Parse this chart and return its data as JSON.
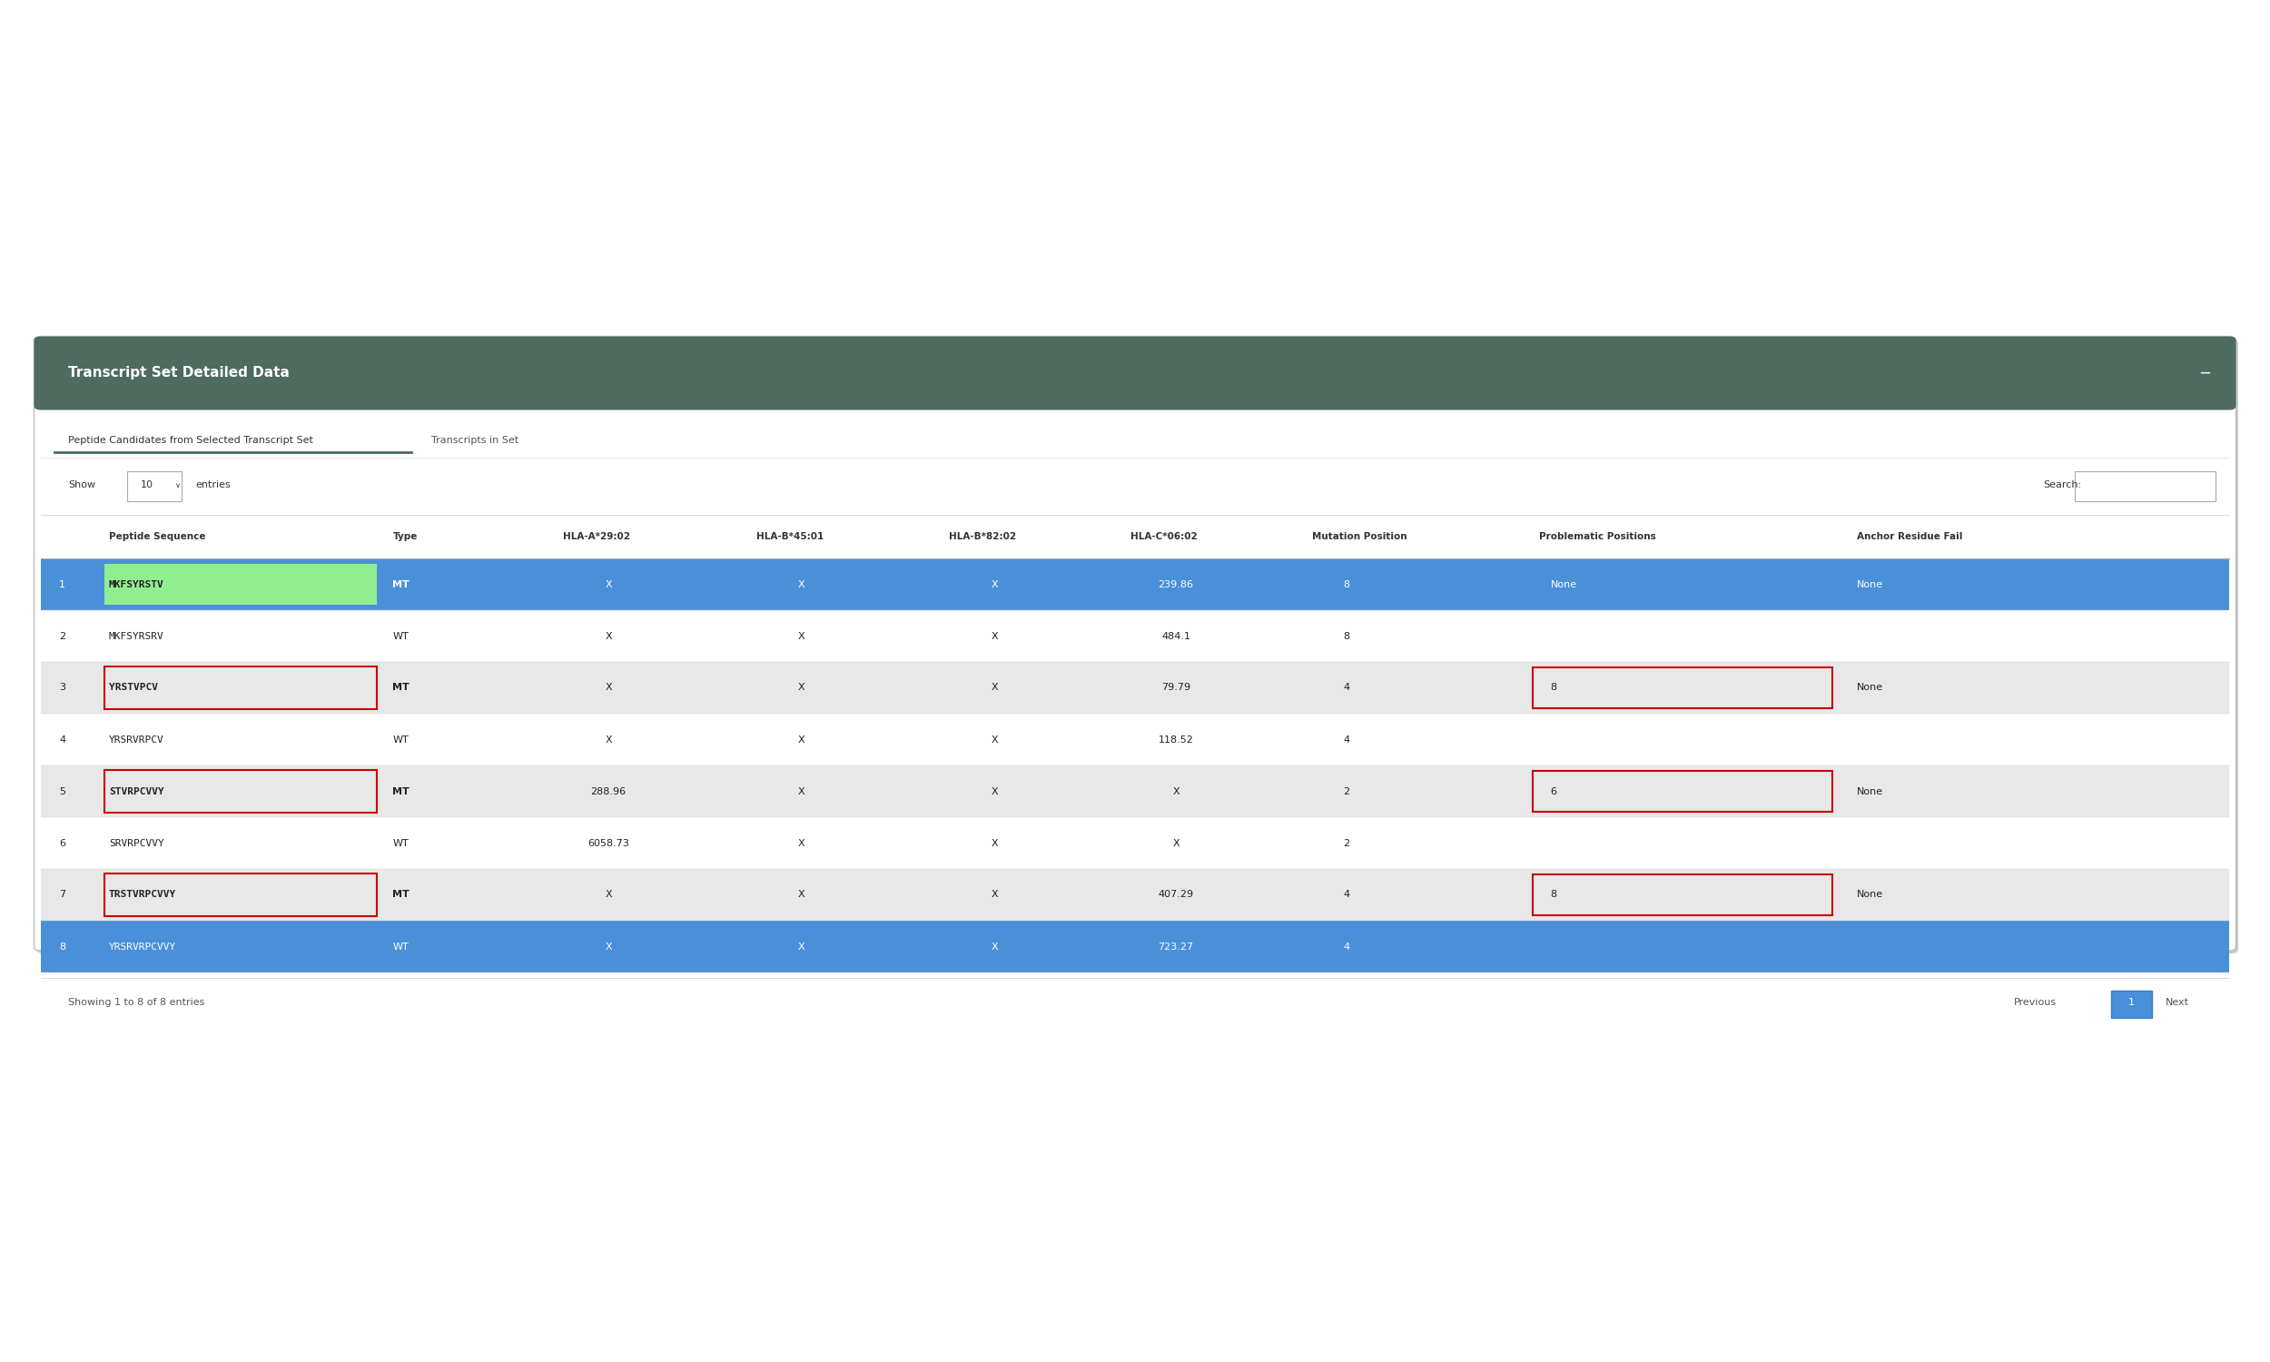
{
  "title": "Transcript Set Detailed Data",
  "tab1": "Peptide Candidates from Selected Transcript Set",
  "tab2": "Transcripts in Set",
  "rows": [
    {
      "num": "1",
      "peptide": "MKFSYRSTV",
      "type": "MT",
      "hla_a": "X",
      "hla_b45": "X",
      "hla_b82": "X",
      "hla_c": "239.86",
      "mutation_pos": "8",
      "prob_pos": "None",
      "anchor": "None",
      "row_bg": "blue",
      "peptide_bg": "green",
      "prob_box": false
    },
    {
      "num": "2",
      "peptide": "MKFSYRSRV",
      "type": "WT",
      "hla_a": "X",
      "hla_b45": "X",
      "hla_b82": "X",
      "hla_c": "484.1",
      "mutation_pos": "8",
      "prob_pos": "",
      "anchor": "",
      "row_bg": "white",
      "peptide_bg": "white",
      "prob_box": false
    },
    {
      "num": "3",
      "peptide": "YRSTVPCV",
      "type": "MT",
      "hla_a": "X",
      "hla_b45": "X",
      "hla_b82": "X",
      "hla_c": "79.79",
      "mutation_pos": "4",
      "prob_pos": "8",
      "anchor": "None",
      "row_bg": "gray",
      "peptide_bg": "gray",
      "prob_box": true
    },
    {
      "num": "4",
      "peptide": "YRSRVRPCV",
      "type": "WT",
      "hla_a": "X",
      "hla_b45": "X",
      "hla_b82": "X",
      "hla_c": "118.52",
      "mutation_pos": "4",
      "prob_pos": "",
      "anchor": "",
      "row_bg": "white",
      "peptide_bg": "white",
      "prob_box": false
    },
    {
      "num": "5",
      "peptide": "STVRPCVVY",
      "type": "MT",
      "hla_a": "288.96",
      "hla_b45": "X",
      "hla_b82": "X",
      "hla_c": "X",
      "mutation_pos": "2",
      "prob_pos": "6",
      "anchor": "None",
      "row_bg": "gray",
      "peptide_bg": "gray",
      "prob_box": true
    },
    {
      "num": "6",
      "peptide": "SRVRPCVVY",
      "type": "WT",
      "hla_a": "6058.73",
      "hla_b45": "X",
      "hla_b82": "X",
      "hla_c": "X",
      "mutation_pos": "2",
      "prob_pos": "",
      "anchor": "",
      "row_bg": "white",
      "peptide_bg": "white",
      "prob_box": false
    },
    {
      "num": "7",
      "peptide": "TRSTVRPCVVY",
      "type": "MT",
      "hla_a": "X",
      "hla_b45": "X",
      "hla_b82": "X",
      "hla_c": "407.29",
      "mutation_pos": "4",
      "prob_pos": "8",
      "anchor": "None",
      "row_bg": "gray",
      "peptide_bg": "gray",
      "prob_box": true
    },
    {
      "num": "8",
      "peptide": "YRSRVRPCVVY",
      "type": "WT",
      "hla_a": "X",
      "hla_b45": "X",
      "hla_b82": "X",
      "hla_c": "723.27",
      "mutation_pos": "4",
      "prob_pos": "",
      "anchor": "",
      "row_bg": "blue",
      "peptide_bg": "blue",
      "prob_box": false
    }
  ],
  "footer": "Showing 1 to 8 of 8 entries",
  "header_color": "#4d6b5e",
  "blue_row_color": "#4a90d9",
  "gray_row_color": "#e8e8e8",
  "white_row_color": "#ffffff",
  "green_cell_color": "#90ee90",
  "tab_underline_color": "#4d6b5e",
  "red_box_color": "#cc0000",
  "outer_bg": "#ffffff",
  "panel_shadow": "#dddddd"
}
